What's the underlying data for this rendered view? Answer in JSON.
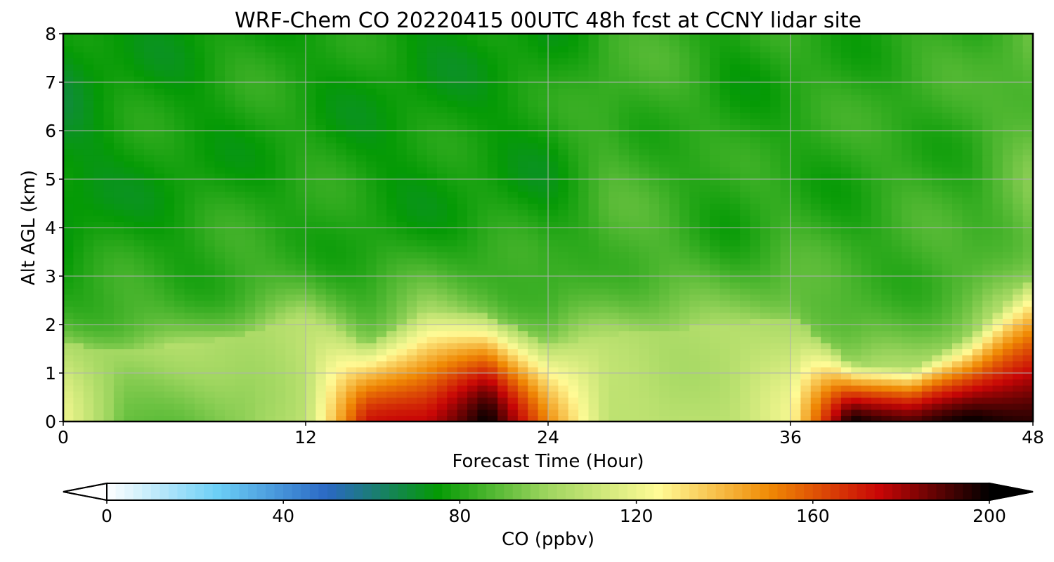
{
  "chart_data": {
    "type": "heatmap",
    "title": "WRF-Chem CO  20220415 00UTC 48h fcst at CCNY lidar site",
    "xlabel": "Forecast Time (Hour)",
    "ylabel": "Alt AGL (km)",
    "xlim": [
      0,
      48
    ],
    "ylim": [
      0,
      8
    ],
    "x_ticks": [
      "0",
      "12",
      "24",
      "36",
      "48"
    ],
    "y_ticks": [
      "0",
      "1",
      "2",
      "3",
      "4",
      "5",
      "6",
      "7",
      "8"
    ],
    "grid": true,
    "colorbar": {
      "label": "CO  (ppbv)",
      "range": [
        0,
        200
      ],
      "ticks": [
        "0",
        "40",
        "80",
        "120",
        "160",
        "200"
      ],
      "extend": "both",
      "colors": [
        "#ffffff",
        "#6ccff6",
        "#2a68c4",
        "#059a05",
        "#9fd660",
        "#fffb96",
        "#f08a05",
        "#c80606",
        "#000000"
      ]
    },
    "field_description": {
      "x_hours": [
        0,
        3,
        6,
        9,
        12,
        15,
        18,
        21,
        24,
        27,
        30,
        33,
        36,
        39,
        42,
        45,
        48
      ],
      "boundary_layer_top_km": [
        1.6,
        1.5,
        1.6,
        1.8,
        2.2,
        1.6,
        2.3,
        2.2,
        1.6,
        1.8,
        1.9,
        2.0,
        2.2,
        1.2,
        1.1,
        1.8,
        3.0
      ],
      "peak_co_ppbv": [
        120,
        90,
        92,
        97,
        110,
        170,
        175,
        200,
        150,
        110,
        105,
        108,
        120,
        200,
        190,
        200,
        195
      ],
      "upper_co_ppbv": [
        76,
        80,
        80,
        82,
        82,
        80,
        79,
        80,
        80,
        88,
        86,
        82,
        84,
        84,
        86,
        86,
        94
      ]
    }
  }
}
